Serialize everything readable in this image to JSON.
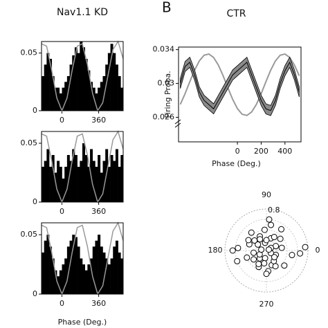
{
  "panel_label": "B",
  "chart_data": [
    {
      "type": "histogram",
      "title": "Nav1.1 KD",
      "color": "#000000",
      "bins": [
        -200,
        -175,
        -150,
        -125,
        -100,
        -75,
        -50,
        -25,
        0,
        25,
        50,
        75,
        100,
        125,
        150,
        175,
        200,
        225,
        250,
        275,
        300,
        325,
        350,
        375,
        400,
        425,
        450,
        475,
        500,
        525,
        550,
        575,
        600
      ],
      "values": [
        0.03,
        0.04,
        0.05,
        0.045,
        0.03,
        0.02,
        0.02,
        0.015,
        0.02,
        0.025,
        0.03,
        0.04,
        0.048,
        0.055,
        0.05,
        0.06,
        0.055,
        0.045,
        0.035,
        0.025,
        0.02,
        0.015,
        0.02,
        0.025,
        0.03,
        0.04,
        0.05,
        0.058,
        0.05,
        0.04,
        0.03,
        0.02
      ],
      "curve_x": [
        -200,
        -150,
        -100,
        -50,
        0,
        50,
        100,
        150,
        200,
        250,
        300,
        350,
        400,
        450,
        500,
        550,
        600
      ],
      "curve_values": [
        0.058,
        0.056,
        0.035,
        0.011,
        0,
        0.011,
        0.035,
        0.056,
        0.058,
        0.04,
        0.015,
        0,
        0.007,
        0.03,
        0.053,
        0.06,
        0.045
      ],
      "curve_color": "#999999",
      "xlim": [
        -200,
        600
      ],
      "xticks": [
        0,
        360
      ],
      "ylim": [
        0,
        0.06
      ],
      "yticks": [
        0,
        0.05
      ]
    },
    {
      "type": "histogram",
      "color": "#000000",
      "bins": [
        -200,
        -175,
        -150,
        -125,
        -100,
        -75,
        -50,
        -25,
        0,
        25,
        50,
        75,
        100,
        125,
        150,
        175,
        200,
        225,
        250,
        275,
        300,
        325,
        350,
        375,
        400,
        425,
        450,
        475,
        500,
        525,
        550,
        575,
        600
      ],
      "values": [
        0.03,
        0.035,
        0.045,
        0.03,
        0.04,
        0.025,
        0.035,
        0.03,
        0.02,
        0.03,
        0.04,
        0.035,
        0.045,
        0.04,
        0.03,
        0.035,
        0.05,
        0.04,
        0.03,
        0.045,
        0.035,
        0.03,
        0.04,
        0.025,
        0.035,
        0.045,
        0.03,
        0.04,
        0.035,
        0.045,
        0.03,
        0.04
      ],
      "curve_x": [
        -200,
        -150,
        -100,
        -50,
        0,
        50,
        100,
        150,
        200,
        250,
        300,
        350,
        400,
        450,
        500,
        550,
        600
      ],
      "curve_values": [
        0.058,
        0.056,
        0.035,
        0.011,
        0,
        0.011,
        0.035,
        0.056,
        0.058,
        0.04,
        0.015,
        0,
        0.007,
        0.03,
        0.053,
        0.06,
        0.045
      ],
      "curve_color": "#999999",
      "xlim": [
        -200,
        600
      ],
      "xticks": [
        0,
        360
      ],
      "ylim": [
        0,
        0.06
      ],
      "yticks": [
        0,
        0.05
      ]
    },
    {
      "type": "histogram",
      "xlabel": "Phase (Deg.)",
      "color": "#000000",
      "bins": [
        -200,
        -175,
        -150,
        -125,
        -100,
        -75,
        -50,
        -25,
        0,
        25,
        50,
        75,
        100,
        125,
        150,
        175,
        200,
        225,
        250,
        275,
        300,
        325,
        350,
        375,
        400,
        425,
        450,
        475,
        500,
        525,
        550,
        575,
        600
      ],
      "values": [
        0.035,
        0.045,
        0.05,
        0.04,
        0.03,
        0.02,
        0.015,
        0.02,
        0.025,
        0.03,
        0.04,
        0.045,
        0.05,
        0.048,
        0.04,
        0.03,
        0.025,
        0.02,
        0.025,
        0.03,
        0.04,
        0.045,
        0.05,
        0.04,
        0.035,
        0.03,
        0.025,
        0.03,
        0.04,
        0.045,
        0.035,
        0.03
      ],
      "curve_x": [
        -200,
        -150,
        -100,
        -50,
        0,
        50,
        100,
        150,
        200,
        250,
        300,
        350,
        400,
        450,
        500,
        550,
        600
      ],
      "curve_values": [
        0.058,
        0.056,
        0.035,
        0.011,
        0,
        0.011,
        0.035,
        0.056,
        0.058,
        0.04,
        0.015,
        0,
        0.007,
        0.03,
        0.053,
        0.06,
        0.045
      ],
      "curve_color": "#999999",
      "xlim": [
        -200,
        600
      ],
      "xticks": [
        0,
        360
      ],
      "ylim": [
        0,
        0.06
      ],
      "yticks": [
        0,
        0.05
      ]
    },
    {
      "type": "line",
      "title": "CTR",
      "ylabel": "Firing Proba.",
      "xlabel": "Phase (Deg.)",
      "x": [
        -480,
        -440,
        -400,
        -360,
        -320,
        -280,
        -240,
        -200,
        -160,
        -120,
        -80,
        -40,
        0,
        40,
        80,
        120,
        160,
        200,
        240,
        280,
        320,
        360,
        400,
        440,
        480,
        520
      ],
      "series": [
        {
          "color": "#000000",
          "band_color": "#8a8a8a",
          "values": [
            0.03,
            0.032,
            0.0325,
            0.031,
            0.029,
            0.028,
            0.0275,
            0.027,
            0.028,
            0.029,
            0.03,
            0.031,
            0.0315,
            0.032,
            0.0325,
            0.031,
            0.0295,
            0.028,
            0.027,
            0.0268,
            0.028,
            0.03,
            0.0315,
            0.0325,
            0.031,
            0.029
          ],
          "errors": [
            0.0006,
            0.0006,
            0.0006,
            0.0006,
            0.0006,
            0.0006,
            0.0006,
            0.0006,
            0.0006,
            0.0006,
            0.0006,
            0.0006,
            0.0006,
            0.0006,
            0.0006,
            0.0006,
            0.0006,
            0.0006,
            0.0006,
            0.0006,
            0.0006,
            0.0006,
            0.0006,
            0.0006,
            0.0006,
            0.0006
          ]
        }
      ],
      "curve_values": [
        0.02753,
        0.02879,
        0.03021,
        0.03157,
        0.03267,
        0.03334,
        0.03348,
        0.03307,
        0.03217,
        0.03091,
        0.02949,
        0.02813,
        0.02703,
        0.02636,
        0.02622,
        0.02663,
        0.02753,
        0.02879,
        0.03021,
        0.03157,
        0.03267,
        0.03334,
        0.03348,
        0.03307,
        0.03217,
        0.03091
      ],
      "curve_color": "#999999",
      "xlim": [
        -495,
        535
      ],
      "xticks": [
        0,
        200,
        400
      ],
      "ylim": [
        0.0231,
        0.0343
      ],
      "yticks": [
        0.026,
        0.03,
        0.034
      ]
    },
    {
      "type": "polar_scatter",
      "color": "#000000",
      "theta": [
        10,
        25,
        40,
        55,
        70,
        85,
        95,
        100,
        115,
        130,
        145,
        160,
        175,
        190,
        200,
        215,
        230,
        245,
        260,
        275,
        290,
        305,
        320,
        335,
        350,
        5,
        30,
        60,
        90,
        120,
        150,
        180,
        210,
        240,
        270,
        300,
        330,
        20,
        80,
        140,
        200,
        260,
        320,
        355,
        170
      ],
      "r": [
        0.3,
        0.2,
        0.35,
        0.5,
        0.25,
        0.6,
        0.4,
        0.15,
        0.3,
        0.45,
        0.2,
        0.35,
        0.55,
        0.25,
        0.4,
        0.3,
        0.2,
        0.35,
        0.15,
        0.4,
        0.3,
        0.25,
        0.45,
        0.2,
        0.5,
        0.75,
        0.1,
        0.3,
        0.2,
        0.25,
        0.4,
        0.65,
        0.15,
        0.3,
        0.45,
        0.35,
        0.1,
        0.05,
        0.5,
        0.3,
        0.6,
        0.25,
        0.2,
        0.65,
        0.1
      ],
      "rlim": [
        0,
        0.8
      ],
      "rticks": [
        0.8
      ],
      "thetaticks": [
        0,
        90,
        180,
        270
      ]
    }
  ]
}
